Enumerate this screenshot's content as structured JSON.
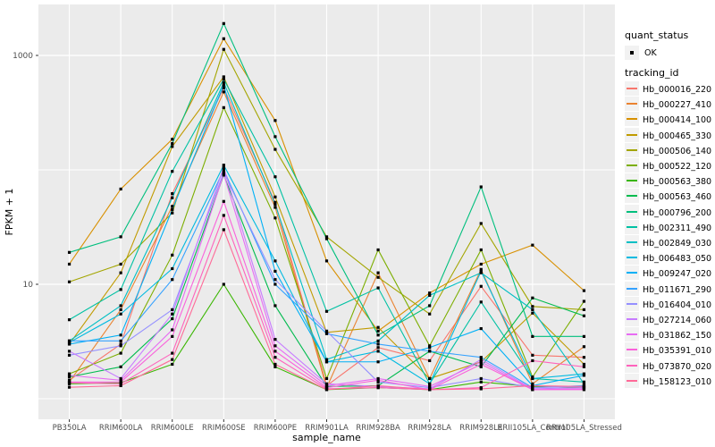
{
  "colors": {
    "panel_bg": "#EBEBEB",
    "grid": "#FFFFFF",
    "tick_label": "#4D4D4D",
    "axis_title": "#000000",
    "point": "#000000",
    "legend_key_bg": "#F2F2F2"
  },
  "legend": {
    "quant_title": "quant_status",
    "quant_items": [
      {
        "label": "OK"
      }
    ],
    "tracking_title": "tracking_id"
  },
  "chart_data": {
    "type": "line",
    "title": "",
    "xlabel": "sample_name",
    "ylabel": "FPKM + 1",
    "y_scale": "log10",
    "ylim": [
      1,
      2000
    ],
    "grid": true,
    "legend_position": "right",
    "point_legend": {
      "title": "quant_status",
      "label": "OK"
    },
    "y_major_ticks": [
      {
        "value": 10,
        "label": "10"
      },
      {
        "value": 1000,
        "label": "1000"
      }
    ],
    "y_minor_ticks": [
      1,
      100
    ],
    "categories": [
      "PB350LA",
      "RRIM600LA",
      "RRIM600LE",
      "RRIM600SE",
      "RRIM600PE",
      "RRIM901LA",
      "RRIM928BA",
      "RRIM928LA",
      "RRIM928LE",
      "RRII105LA_Control",
      "RRII105LA_Stressed"
    ],
    "series": [
      {
        "name": "Hb_000016_220",
        "color": "#F8766D",
        "values": [
          1.45,
          3.0,
          62,
          520,
          52,
          1.3,
          2.8,
          2.15,
          9.6,
          2.4,
          2.3
        ]
      },
      {
        "name": "Hb_000227_410",
        "color": "#EA8331",
        "values": [
          1.4,
          6.0,
          48,
          480,
          47,
          1.25,
          12.6,
          1.5,
          13.5,
          1.35,
          2.85
        ]
      },
      {
        "name": "Hb_000414_100",
        "color": "#D89000",
        "values": [
          15,
          68,
          185,
          1400,
          270,
          16,
          3.9,
          8.4,
          15,
          22,
          8.8
        ]
      },
      {
        "name": "Hb_000465_330",
        "color": "#C09B00",
        "values": [
          3.0,
          12.6,
          160,
          650,
          58,
          3.8,
          4.2,
          1.5,
          2.1,
          5.6,
          2.0
        ]
      },
      {
        "name": "Hb_000506_140",
        "color": "#A3A500",
        "values": [
          10.5,
          15,
          42,
          1130,
          151,
          26,
          11.5,
          5.5,
          34,
          6.4,
          6.0
        ]
      },
      {
        "name": "Hb_000522_120",
        "color": "#7CAE00",
        "values": [
          1.65,
          2.5,
          18,
          350,
          38,
          1.5,
          20,
          2.9,
          20,
          1.55,
          7.1
        ]
      },
      {
        "name": "Hb_000563_380",
        "color": "#39B600",
        "values": [
          1.35,
          1.38,
          2.0,
          10,
          1.9,
          1.2,
          1.25,
          1.2,
          1.4,
          1.28,
          1.25
        ]
      },
      {
        "name": "Hb_000563_460",
        "color": "#00BB4E",
        "values": [
          1.55,
          1.9,
          5.0,
          90,
          6.5,
          1.28,
          1.3,
          2.6,
          1.9,
          7.6,
          5.3
        ]
      },
      {
        "name": "Hb_000796_200",
        "color": "#00BF7D",
        "values": [
          19,
          26,
          170,
          1900,
          195,
          25,
          3.6,
          6.5,
          71,
          3.5,
          3.5
        ]
      },
      {
        "name": "Hb_002311_490",
        "color": "#00C1A3",
        "values": [
          4.9,
          9.0,
          97,
          620,
          87,
          5.8,
          9.3,
          1.35,
          7.0,
          1.5,
          1.4
        ]
      },
      {
        "name": "Hb_002849_030",
        "color": "#00BFC4",
        "values": [
          3.2,
          6.5,
          57,
          580,
          50,
          2.2,
          3.2,
          8.0,
          12.6,
          6.0,
          1.35
        ]
      },
      {
        "name": "Hb_006483_050",
        "color": "#00BAE0",
        "values": [
          3.1,
          5.5,
          13.7,
          110,
          16,
          2.1,
          2.6,
          1.35,
          13.0,
          1.5,
          1.65
        ]
      },
      {
        "name": "Hb_009247_020",
        "color": "#00B0F6",
        "values": [
          3.0,
          3.6,
          45,
          550,
          13,
          2.1,
          2.1,
          2.8,
          4.1,
          1.3,
          1.6
        ]
      },
      {
        "name": "Hb_011671_290",
        "color": "#35A2FF",
        "values": [
          3.2,
          3.2,
          11,
          100,
          10,
          3.7,
          3.0,
          2.6,
          2.3,
          1.25,
          1.3
        ]
      },
      {
        "name": "Hb_016404_010",
        "color": "#9590FF",
        "values": [
          2.4,
          2.9,
          6.0,
          95,
          11,
          3.9,
          1.4,
          1.25,
          1.5,
          1.25,
          1.28
        ]
      },
      {
        "name": "Hb_027214_060",
        "color": "#C77CFF",
        "values": [
          2.6,
          1.5,
          5.5,
          105,
          3.3,
          1.35,
          1.28,
          1.22,
          2.2,
          1.22,
          1.25
        ]
      },
      {
        "name": "Hb_031862_150",
        "color": "#E76BF3",
        "values": [
          1.6,
          1.45,
          4.0,
          92,
          2.9,
          1.3,
          1.5,
          1.28,
          2.1,
          1.2,
          1.22
        ]
      },
      {
        "name": "Hb_035391_010",
        "color": "#FA62DB",
        "values": [
          1.4,
          1.4,
          3.5,
          53,
          2.6,
          1.25,
          1.45,
          1.2,
          2.0,
          1.2,
          1.2
        ]
      },
      {
        "name": "Hb_073870_020",
        "color": "#FF62BC",
        "values": [
          1.38,
          1.35,
          2.5,
          40,
          2.3,
          1.22,
          1.25,
          1.2,
          1.25,
          2.15,
          1.9
        ]
      },
      {
        "name": "Hb_158123_010",
        "color": "#FF6A98",
        "values": [
          1.26,
          1.3,
          2.2,
          30,
          2.0,
          1.2,
          1.3,
          1.2,
          1.22,
          1.3,
          1.28
        ]
      }
    ]
  }
}
